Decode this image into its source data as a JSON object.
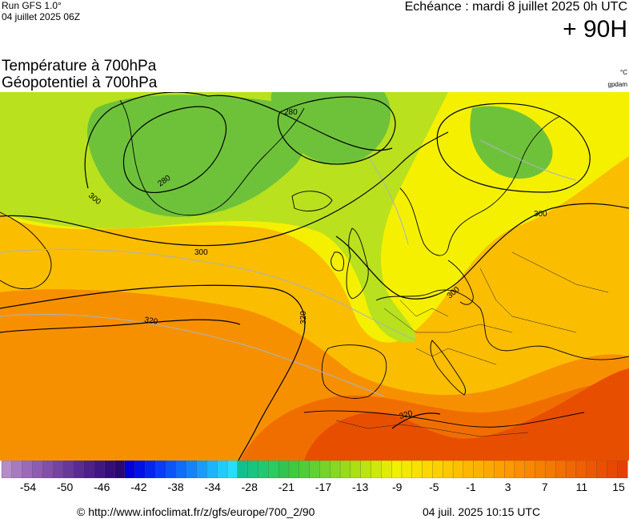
{
  "header": {
    "run_label": "Run GFS 1.0°",
    "run_date": "04 juillet 2025 06Z",
    "forecast_time": "Echéance : mardi 8 juillet 2025 0h UTC",
    "forecast_offset": "+ 90H"
  },
  "titles": {
    "temperature": "Température à 700hPa",
    "geopotential": "Géopotentiel à 700hPa",
    "temperature_unit": "°C",
    "geopotential_unit": "gpdam"
  },
  "map": {
    "region": "Europe / North Atlantic",
    "contour_labels": [
      "280",
      "280",
      "300",
      "300",
      "300",
      "300",
      "320",
      "320",
      "320"
    ],
    "colors": {
      "cold": "#6ec23a",
      "cool": "#b9e11e",
      "mild": "#f4f000",
      "warm": "#fbbd00",
      "hot": "#f79000",
      "very_hot": "#f06e00",
      "extreme": "#e84e00"
    }
  },
  "colorbar": {
    "tick_labels": [
      "-54",
      "-50",
      "-46",
      "-42",
      "-38",
      "-34",
      "-28",
      "-21",
      "-17",
      "-13",
      "-9",
      "-5",
      "-1",
      "3",
      "7",
      "11",
      "15"
    ],
    "swatches": [
      "#b48cc8",
      "#a77bc0",
      "#9b6ab8",
      "#8e5cb0",
      "#8250a8",
      "#7444a0",
      "#673898",
      "#5a2c90",
      "#4e2088",
      "#421680",
      "#340e78",
      "#2a0870",
      "#0000d8",
      "#0010e6",
      "#0424f0",
      "#083cf6",
      "#0c54fa",
      "#106cfc",
      "#1484fe",
      "#189cff",
      "#1cb4ff",
      "#20ccff",
      "#24e0ff",
      "#10c090",
      "#18c480",
      "#20c870",
      "#28cc60",
      "#30c450",
      "#40c840",
      "#50cc38",
      "#62d030",
      "#74d428",
      "#86d820",
      "#98dc18",
      "#aae014",
      "#bce410",
      "#cee80c",
      "#e0ec08",
      "#f0f000",
      "#f4e800",
      "#f8e000",
      "#fcd800",
      "#fcd000",
      "#fcc800",
      "#fcc000",
      "#fcb800",
      "#fcb000",
      "#fca800",
      "#fca000",
      "#fc9800",
      "#fa9000",
      "#f88800",
      "#f68000",
      "#f47800",
      "#f27000",
      "#f06800",
      "#ee6000",
      "#ec5800",
      "#ea5000",
      "#e84800",
      "#e64000"
    ]
  },
  "footer": {
    "copyright": "© http://www.infoclimat.fr/z/gfs/europe/700_2/90",
    "update_time": "04 juil. 2025 10:15 UTC"
  }
}
